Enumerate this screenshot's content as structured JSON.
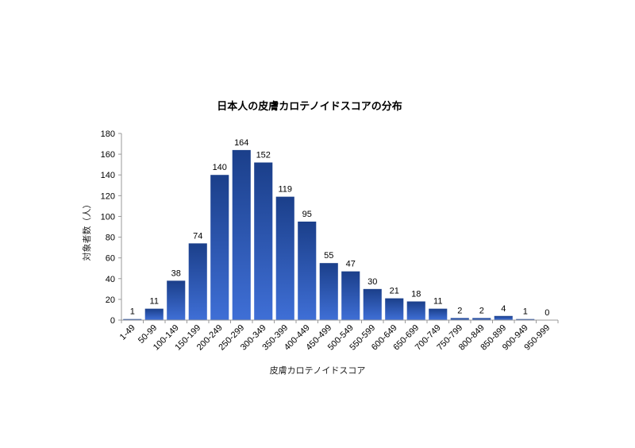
{
  "chart_data": {
    "type": "bar",
    "title": "日本人の皮膚カロテノイドスコアの分布",
    "xlabel": "皮膚カロテノイドスコア",
    "ylabel": "対象者数（人）",
    "categories": [
      "1-49",
      "50-99",
      "100-149",
      "150-199",
      "200-249",
      "250-299",
      "300-349",
      "350-399",
      "400-449",
      "450-499",
      "500-549",
      "550-599",
      "600-649",
      "650-699",
      "700-749",
      "750-799",
      "800-849",
      "850-899",
      "900-949",
      "950-999"
    ],
    "values": [
      1,
      11,
      38,
      74,
      140,
      164,
      152,
      119,
      95,
      55,
      47,
      30,
      21,
      18,
      11,
      2,
      2,
      4,
      1,
      0
    ],
    "data_labels": [
      "1",
      "11",
      "38",
      "74",
      "140",
      "164",
      "152",
      "119",
      "95",
      "55",
      "47",
      "30",
      "21",
      "18",
      "11",
      "2",
      "2",
      "4",
      "1",
      "0"
    ],
    "ylim": [
      0,
      180
    ],
    "yticks": [
      0,
      20,
      40,
      60,
      80,
      100,
      120,
      140,
      160,
      180
    ],
    "ytick_labels": [
      "0",
      "20",
      "40",
      "60",
      "80",
      "100",
      "120",
      "140",
      "160",
      "180"
    ],
    "grid": false,
    "legend": "none",
    "colors": {
      "bar_top": "#1b3f8a",
      "bar_bottom": "#3f6fd6",
      "axis": "#9a9a9a"
    }
  }
}
